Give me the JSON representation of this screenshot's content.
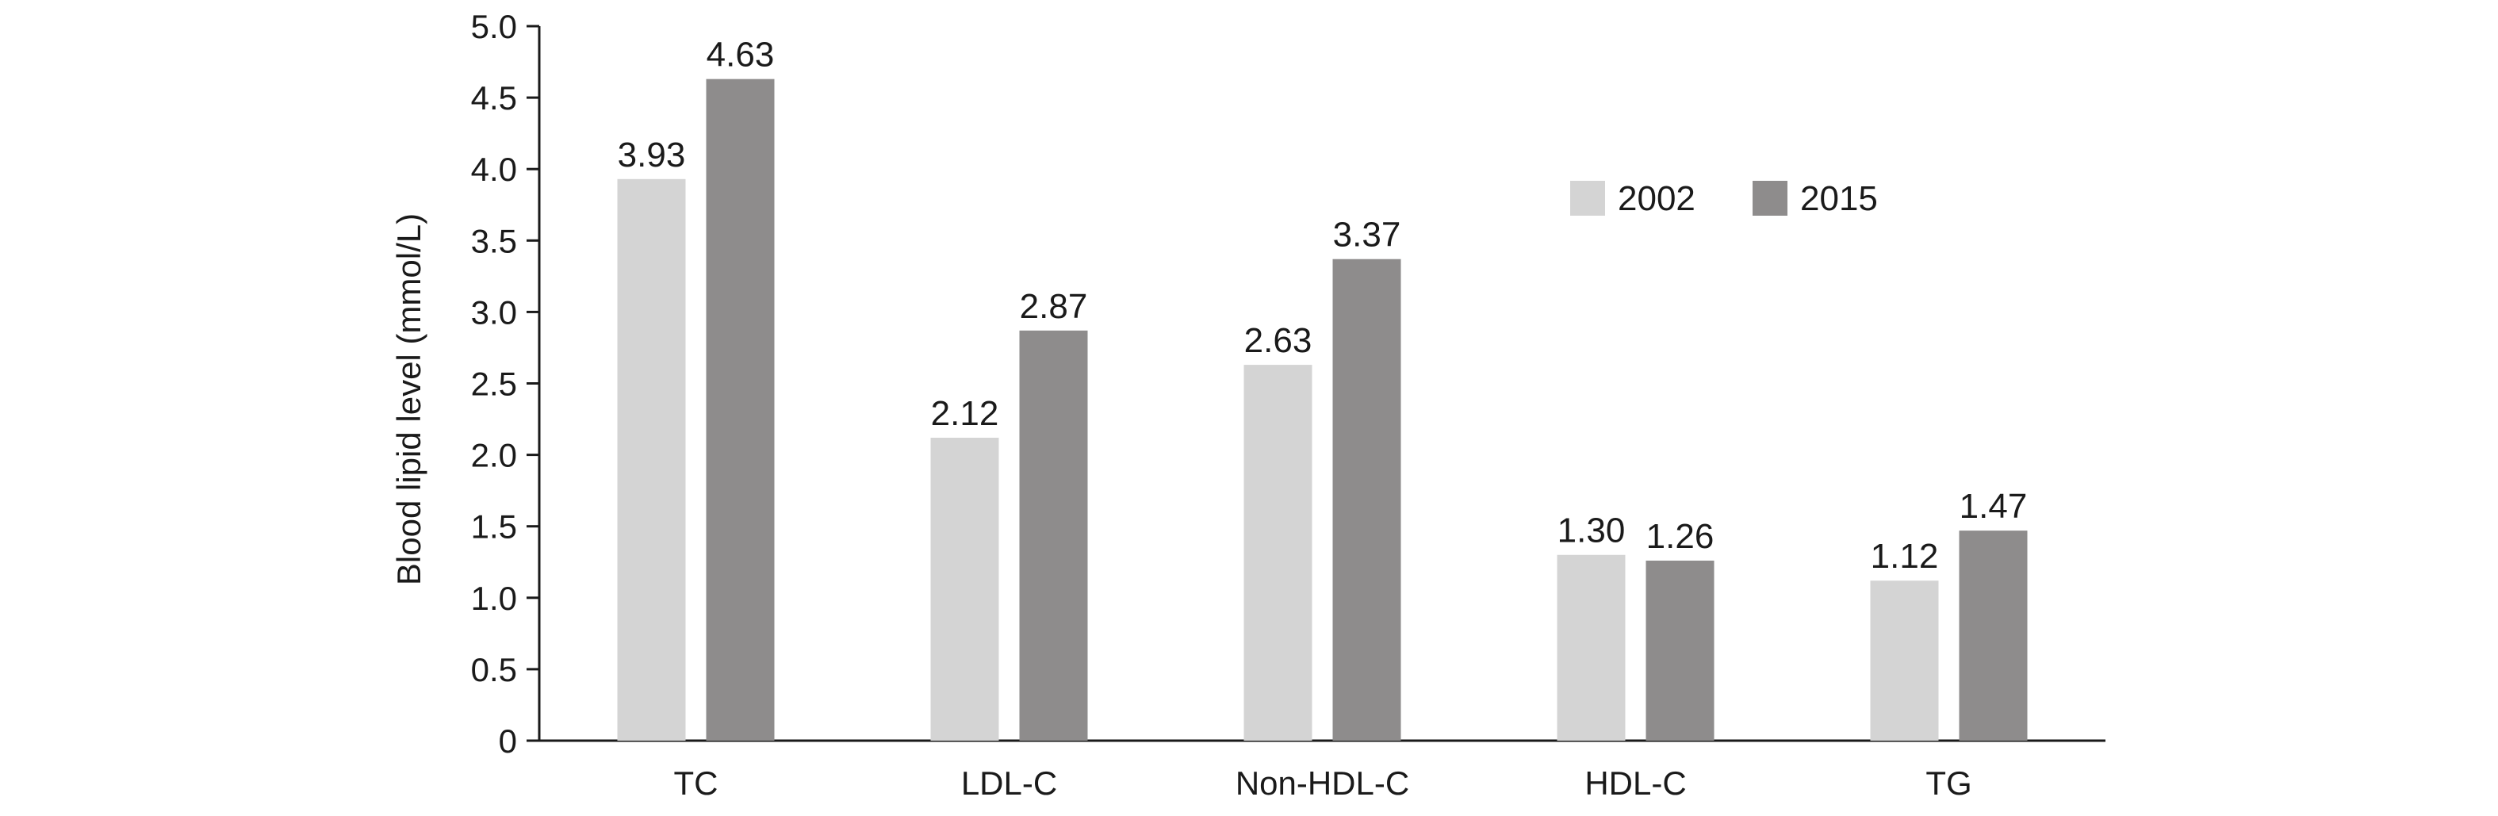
{
  "chart_data": {
    "type": "bar",
    "categories": [
      "TC",
      "LDL-C",
      "Non-HDL-C",
      "HDL-C",
      "TG"
    ],
    "series": [
      {
        "name": "2002",
        "values": [
          3.93,
          2.12,
          2.63,
          1.3,
          1.12
        ],
        "labels": [
          "3.93",
          "2.12",
          "2.63",
          "1.30",
          "1.12"
        ],
        "color": "#d4d4d4"
      },
      {
        "name": "2015",
        "values": [
          4.63,
          2.87,
          3.37,
          1.26,
          1.47
        ],
        "labels": [
          "4.63",
          "2.87",
          "3.37",
          "1.26",
          "1.47"
        ],
        "color": "#8e8c8c"
      }
    ],
    "ylabel": "Blood lipid level (mmol/L)",
    "xlabel": "",
    "ylim": [
      0,
      5.0
    ],
    "yticks": [
      "0",
      "0.5",
      "1.0",
      "1.5",
      "2.0",
      "2.5",
      "3.0",
      "3.5",
      "4.0",
      "4.5",
      "5.0"
    ],
    "grid": false,
    "legend_position": "top-right"
  }
}
